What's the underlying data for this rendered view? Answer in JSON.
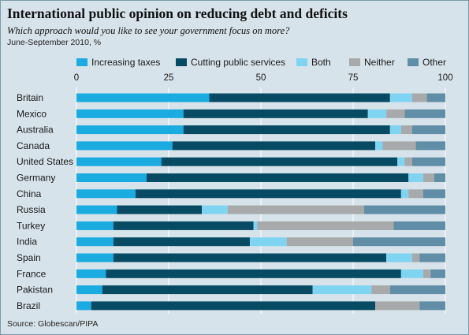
{
  "header": {
    "title": "International public opinion on reducing debt and deficits",
    "subtitle": "Which approach would you like to see your government focus on more?",
    "note": "June-September 2010, %"
  },
  "footer": {
    "source": "Source: Globescan/PIPA"
  },
  "colors": {
    "background": "#d7e3ea",
    "gridline": "#ffffff",
    "increasing_taxes": "#1aabe0",
    "cutting_public_services": "#074a64",
    "both": "#7fd4f2",
    "neither": "#a7a9ab",
    "other": "#5f8ea6"
  },
  "chart_data": {
    "type": "bar",
    "orientation": "horizontal",
    "stacked": true,
    "unit": "%",
    "xlim": [
      0,
      100
    ],
    "ticks": [
      0,
      25,
      50,
      75,
      100
    ],
    "grid": true,
    "legend_position": "top",
    "categories": [
      "Britain",
      "Mexico",
      "Australia",
      "Canada",
      "United States",
      "Germany",
      "China",
      "Russia",
      "Turkey",
      "India",
      "Spain",
      "France",
      "Pakistan",
      "Brazil"
    ],
    "series": [
      {
        "name": "Increasing taxes",
        "color_key": "increasing_taxes",
        "values": [
          36,
          29,
          29,
          26,
          23,
          19,
          16,
          11,
          10,
          10,
          10,
          8,
          7,
          4
        ]
      },
      {
        "name": "Cutting public services",
        "color_key": "cutting_public_services",
        "values": [
          49,
          50,
          56,
          55,
          64,
          71,
          72,
          23,
          38,
          37,
          74,
          80,
          57,
          77
        ]
      },
      {
        "name": "Both",
        "color_key": "both",
        "values": [
          6,
          5,
          3,
          2,
          2,
          4,
          2,
          7,
          1,
          10,
          7,
          6,
          16,
          0
        ]
      },
      {
        "name": "Neither",
        "color_key": "neither",
        "values": [
          4,
          5,
          3,
          9,
          2,
          3,
          4,
          37,
          37,
          18,
          2,
          2,
          5,
          12
        ]
      },
      {
        "name": "Other",
        "color_key": "other",
        "values": [
          5,
          11,
          9,
          8,
          9,
          3,
          6,
          22,
          14,
          25,
          7,
          4,
          15,
          7
        ]
      }
    ]
  }
}
